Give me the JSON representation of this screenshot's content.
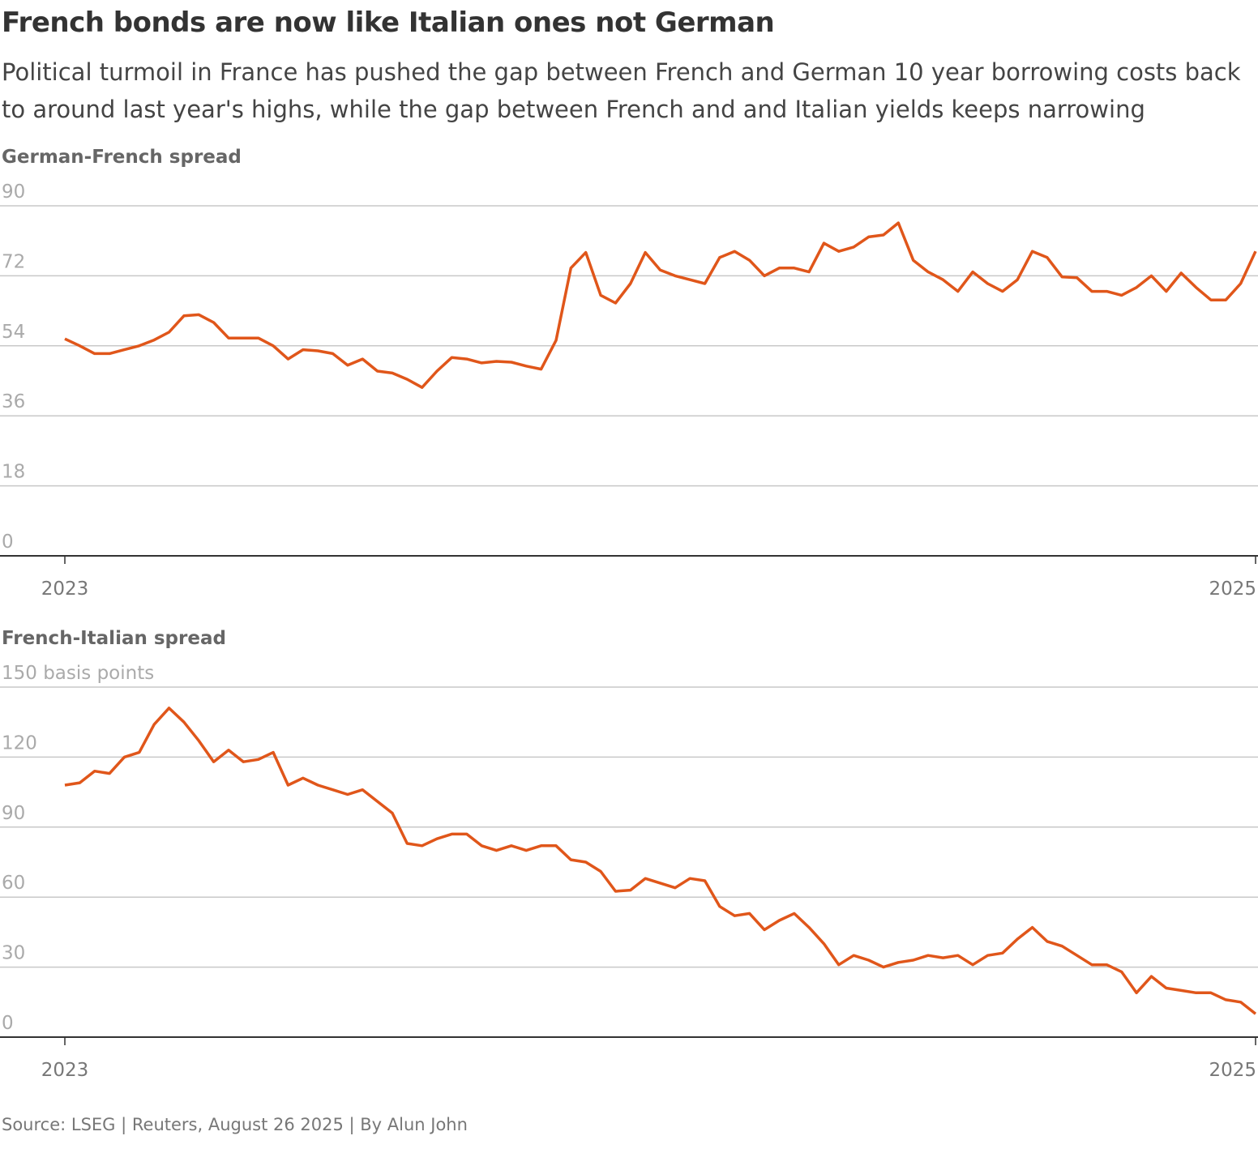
{
  "title": "French bonds are now like Italian ones not German",
  "subtitle": "Political turmoil in France has pushed the gap between French and German 10 year borrowing costs back to around last year's highs, while the gap between French and and Italian yields keeps narrowing",
  "source": "Source: LSEG | Reuters, August 26 2025 | By Alun John",
  "chart_data": [
    {
      "type": "line",
      "title": "German-French spread",
      "xlim": [
        2023,
        2025
      ],
      "xticks": [
        2023,
        2025
      ],
      "ylim": [
        0,
        90
      ],
      "yticks": [
        0,
        18,
        36,
        54,
        72,
        90
      ],
      "grid": true,
      "x": [
        2023,
        2023.025,
        2023.05,
        2023.075,
        2023.1,
        2023.125,
        2023.15,
        2023.175,
        2023.2,
        2023.225,
        2023.25,
        2023.275,
        2023.3,
        2023.325,
        2023.35,
        2023.375,
        2023.4,
        2023.425,
        2023.45,
        2023.475,
        2023.5,
        2023.525,
        2023.55,
        2023.575,
        2023.6,
        2023.625,
        2023.65,
        2023.675,
        2023.7,
        2023.725,
        2023.75,
        2023.775,
        2023.8,
        2023.825,
        2023.85,
        2023.875,
        2023.9,
        2023.925,
        2023.95,
        2023.975,
        2024,
        2024.025,
        2024.05,
        2024.075,
        2024.1,
        2024.125,
        2024.15,
        2024.175,
        2024.2,
        2024.225,
        2024.25,
        2024.275,
        2024.3,
        2024.325,
        2024.35,
        2024.375,
        2024.4,
        2024.425,
        2024.45,
        2024.475,
        2024.5,
        2024.525,
        2024.55,
        2024.575,
        2024.6,
        2024.625,
        2024.65,
        2024.675,
        2024.7,
        2024.725,
        2024.75,
        2024.775,
        2024.8,
        2024.825,
        2024.85,
        2024.875,
        2024.9,
        2024.925,
        2024.95,
        2024.975,
        2025
      ],
      "series": [
        {
          "color": "#e0561a",
          "values": [
            55.8,
            54,
            52,
            52,
            53,
            54,
            55.5,
            57.5,
            61.7,
            62,
            60,
            56,
            56,
            56,
            54,
            50.6,
            53,
            52.7,
            52,
            49,
            50.6,
            47.5,
            47,
            45.4,
            43.3,
            47.5,
            51,
            50.6,
            49.6,
            50,
            49.8,
            48.8,
            48,
            55.4,
            74,
            78,
            67,
            65,
            70,
            78,
            73.5,
            72,
            71,
            70,
            76.7,
            78.3,
            76,
            72,
            74,
            74,
            73,
            80.4,
            78.3,
            79.4,
            82,
            82.5,
            85.6,
            76,
            73,
            71,
            68,
            73,
            70,
            68,
            71,
            78.3,
            76.7,
            71.7,
            71.5,
            68,
            68,
            67,
            69,
            72,
            68,
            72.7,
            69,
            65.8,
            65.8,
            70,
            78.3
          ]
        }
      ]
    },
    {
      "type": "line",
      "title": "French-Italian spread",
      "xlim": [
        2023,
        2025
      ],
      "xticks": [
        2023,
        2025
      ],
      "ylim": [
        0,
        150
      ],
      "yticks": [
        0,
        30,
        60,
        90,
        120,
        {
          "value": 150,
          "label": "150 basis points"
        }
      ],
      "grid": true,
      "x": [
        2023,
        2023.025,
        2023.05,
        2023.075,
        2023.1,
        2023.125,
        2023.15,
        2023.175,
        2023.2,
        2023.225,
        2023.25,
        2023.275,
        2023.3,
        2023.325,
        2023.35,
        2023.375,
        2023.4,
        2023.425,
        2023.45,
        2023.475,
        2023.5,
        2023.525,
        2023.55,
        2023.575,
        2023.6,
        2023.625,
        2023.65,
        2023.675,
        2023.7,
        2023.725,
        2023.75,
        2023.775,
        2023.8,
        2023.825,
        2023.85,
        2023.875,
        2023.9,
        2023.925,
        2023.95,
        2023.975,
        2024,
        2024.025,
        2024.05,
        2024.075,
        2024.1,
        2024.125,
        2024.15,
        2024.175,
        2024.2,
        2024.225,
        2024.25,
        2024.275,
        2024.3,
        2024.325,
        2024.35,
        2024.375,
        2024.4,
        2024.425,
        2024.45,
        2024.475,
        2024.5,
        2024.525,
        2024.55,
        2024.575,
        2024.6,
        2024.625,
        2024.65,
        2024.675,
        2024.7,
        2024.725,
        2024.75,
        2024.775,
        2024.8,
        2024.825,
        2024.85,
        2024.875,
        2024.9,
        2024.925,
        2024.95,
        2024.975,
        2025
      ],
      "series": [
        {
          "color": "#e0561a",
          "values": [
            108,
            109,
            114,
            113,
            120,
            122,
            134,
            141,
            135,
            127,
            118,
            123,
            118,
            119,
            122,
            108,
            111,
            108,
            106,
            104,
            106,
            101,
            96,
            83,
            82,
            85,
            87,
            87,
            82,
            80,
            82,
            80,
            82,
            82,
            76,
            75,
            71,
            62.5,
            63,
            68,
            66,
            64,
            68,
            67,
            56,
            52,
            53,
            46,
            50,
            53,
            47,
            40,
            31,
            35,
            33,
            30,
            32,
            33,
            35,
            34,
            35,
            31,
            35,
            36,
            42,
            47,
            41,
            39,
            35,
            31,
            31,
            28,
            19,
            26,
            21,
            20,
            19,
            19,
            16,
            15,
            10
          ]
        }
      ]
    }
  ]
}
